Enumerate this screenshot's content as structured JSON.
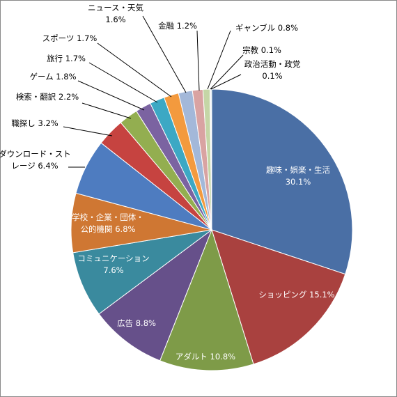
{
  "chart_data": {
    "type": "pie",
    "title": "",
    "start_angle_deg": 0,
    "direction": "clockwise",
    "slices": [
      {
        "label": "趣味・娯楽・生活",
        "value": 30.1,
        "display": "趣味・娯楽・生活 30.1%",
        "color": "#4A6FA5"
      },
      {
        "label": "ショッピング",
        "value": 15.1,
        "display": "ショッピング 15.1%",
        "color": "#A9413F"
      },
      {
        "label": "アダルト",
        "value": 10.8,
        "display": "アダルト 10.8%",
        "color": "#7E9B48"
      },
      {
        "label": "広告",
        "value": 8.8,
        "display": "広告 8.8%",
        "color": "#66508A"
      },
      {
        "label": "コミュニケーション",
        "value": 7.6,
        "display": "コミュニケーション 7.6%",
        "color": "#3A8A9E"
      },
      {
        "label": "学校・企業・団体・公的機関",
        "value": 6.8,
        "display": "学校・企業・団体・公的機関 6.8%",
        "color": "#CF7733"
      },
      {
        "label": "ダウンロード・ストレージ",
        "value": 6.4,
        "display": "ダウンロード・ストレージ 6.4%",
        "color": "#4E7CC0"
      },
      {
        "label": "職探し",
        "value": 3.2,
        "display": "職探し 3.2%",
        "color": "#C64340"
      },
      {
        "label": "検索・翻訳",
        "value": 2.2,
        "display": "検索・翻訳 2.2%",
        "color": "#93AE50"
      },
      {
        "label": "ゲーム",
        "value": 1.8,
        "display": "ゲーム 1.8%",
        "color": "#7B63A1"
      },
      {
        "label": "旅行",
        "value": 1.7,
        "display": "旅行 1.7%",
        "color": "#3CA8C4"
      },
      {
        "label": "スポーツ",
        "value": 1.7,
        "display": "スポーツ 1.7%",
        "color": "#F39A3E"
      },
      {
        "label": "ニュース・天気",
        "value": 1.6,
        "display": "ニュース・天気 1.6%",
        "color": "#A3B8D9"
      },
      {
        "label": "金融",
        "value": 1.2,
        "display": "金融 1.2%",
        "color": "#D9A3A2"
      },
      {
        "label": "ギャンブル",
        "value": 0.8,
        "display": "ギャンブル 0.8%",
        "color": "#C5D6A6"
      },
      {
        "label": "宗教",
        "value": 0.1,
        "display": "宗教 0.1%",
        "color": "#B9AECB"
      },
      {
        "label": "政治活動・政党",
        "value": 0.1,
        "display": "政治活動・政党 0.1%",
        "color": "#A3CDD9"
      }
    ],
    "label_lines": [
      [
        "趣味・娯楽・生活",
        "30.1%"
      ],
      [
        "ショッピング 15.1%"
      ],
      [
        "アダルト 10.8%"
      ],
      [
        "広告 8.8%"
      ],
      [
        "コミュニケーション",
        "7.6%"
      ],
      [
        "学校・企業・団体・",
        "公的機関 6.8%"
      ],
      [
        "ダウンロード・スト",
        "レージ 6.4%"
      ],
      [
        "職探し 3.2%"
      ],
      [
        "検索・翻訳 2.2%"
      ],
      [
        "ゲーム 1.8%"
      ],
      [
        "旅行 1.7%"
      ],
      [
        "スポーツ 1.7%"
      ],
      [
        "ニュース・天気",
        "1.6%"
      ],
      [
        "金融 1.2%"
      ],
      [
        "ギャンブル 0.8%"
      ],
      [
        "宗教 0.1%"
      ],
      [
        "政治活動・政党",
        "0.1%"
      ]
    ]
  }
}
